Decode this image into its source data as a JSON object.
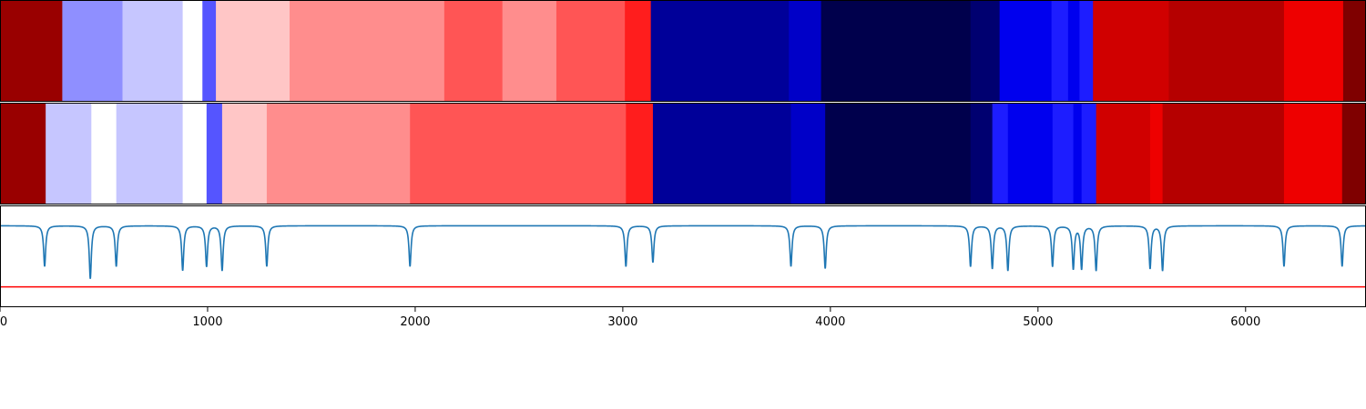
{
  "chart_data": {
    "type": "heatmap",
    "title": "",
    "xlabel": "",
    "ylabel": "",
    "xlim": [
      0,
      6580
    ],
    "xticks": [
      0,
      1000,
      2000,
      3000,
      4000,
      5000,
      6000
    ],
    "xtick_labels": [
      "0",
      "1000",
      "2000",
      "3000",
      "4000",
      "5000",
      "6000"
    ],
    "grid": false,
    "colormap": "seismic",
    "tracks": [
      {
        "segments": [
          {
            "start": 0,
            "end": 300,
            "color": "#990000"
          },
          {
            "start": 300,
            "end": 590,
            "color": "#8f8fff"
          },
          {
            "start": 590,
            "end": 880,
            "color": "#c6c6ff"
          },
          {
            "start": 880,
            "end": 975,
            "color": "#ffffff"
          },
          {
            "start": 975,
            "end": 1040,
            "color": "#5555ff"
          },
          {
            "start": 1040,
            "end": 1395,
            "color": "#ffc6c6"
          },
          {
            "start": 1395,
            "end": 2140,
            "color": "#ff8d8d"
          },
          {
            "start": 2140,
            "end": 2420,
            "color": "#ff5555"
          },
          {
            "start": 2420,
            "end": 2680,
            "color": "#ff8d8d"
          },
          {
            "start": 2680,
            "end": 3010,
            "color": "#ff5555"
          },
          {
            "start": 3010,
            "end": 3135,
            "color": "#ff1d1d"
          },
          {
            "start": 3135,
            "end": 3800,
            "color": "#000099"
          },
          {
            "start": 3800,
            "end": 3955,
            "color": "#0000c8"
          },
          {
            "start": 3955,
            "end": 4675,
            "color": "#00004c"
          },
          {
            "start": 4675,
            "end": 4815,
            "color": "#000070"
          },
          {
            "start": 4815,
            "end": 5065,
            "color": "#0000ee"
          },
          {
            "start": 5065,
            "end": 5145,
            "color": "#1d1dff"
          },
          {
            "start": 5145,
            "end": 5200,
            "color": "#0000ee"
          },
          {
            "start": 5200,
            "end": 5265,
            "color": "#1d1dff"
          },
          {
            "start": 5265,
            "end": 5630,
            "color": "#d00000"
          },
          {
            "start": 5630,
            "end": 6185,
            "color": "#b50000"
          },
          {
            "start": 6185,
            "end": 6470,
            "color": "#ee0000"
          },
          {
            "start": 6470,
            "end": 6580,
            "color": "#7f0000"
          }
        ]
      },
      {
        "segments": [
          {
            "start": 0,
            "end": 220,
            "color": "#990000"
          },
          {
            "start": 220,
            "end": 440,
            "color": "#c6c6ff"
          },
          {
            "start": 440,
            "end": 560,
            "color": "#ffffff"
          },
          {
            "start": 560,
            "end": 880,
            "color": "#c6c6ff"
          },
          {
            "start": 880,
            "end": 995,
            "color": "#ffffff"
          },
          {
            "start": 995,
            "end": 1070,
            "color": "#5555ff"
          },
          {
            "start": 1070,
            "end": 1285,
            "color": "#ffc6c6"
          },
          {
            "start": 1285,
            "end": 1975,
            "color": "#ff8d8d"
          },
          {
            "start": 1975,
            "end": 3015,
            "color": "#ff5555"
          },
          {
            "start": 3015,
            "end": 3145,
            "color": "#ff1d1d"
          },
          {
            "start": 3145,
            "end": 3810,
            "color": "#000099"
          },
          {
            "start": 3810,
            "end": 3975,
            "color": "#0000c8"
          },
          {
            "start": 3975,
            "end": 4675,
            "color": "#00004c"
          },
          {
            "start": 4675,
            "end": 4780,
            "color": "#000070"
          },
          {
            "start": 4780,
            "end": 4855,
            "color": "#1d1dff"
          },
          {
            "start": 4855,
            "end": 5070,
            "color": "#0000ee"
          },
          {
            "start": 5070,
            "end": 5170,
            "color": "#1d1dff"
          },
          {
            "start": 5170,
            "end": 5210,
            "color": "#0000ee"
          },
          {
            "start": 5210,
            "end": 5280,
            "color": "#1d1dff"
          },
          {
            "start": 5280,
            "end": 5540,
            "color": "#d00000"
          },
          {
            "start": 5540,
            "end": 5600,
            "color": "#ee0000"
          },
          {
            "start": 5600,
            "end": 6185,
            "color": "#b50000"
          },
          {
            "start": 6185,
            "end": 6465,
            "color": "#ee0000"
          },
          {
            "start": 6465,
            "end": 6580,
            "color": "#7f0000"
          }
        ]
      }
    ],
    "signal": {
      "color": "#1f77b4",
      "baseline": 1.0,
      "ylim": [
        -1.0,
        1.5
      ],
      "dips": [
        {
          "x": 215,
          "depth": 0.0,
          "width": 6
        },
        {
          "x": 435,
          "depth": -0.3,
          "width": 6
        },
        {
          "x": 560,
          "depth": 0.0,
          "width": 6
        },
        {
          "x": 880,
          "depth": -0.1,
          "width": 6
        },
        {
          "x": 995,
          "depth": 0.0,
          "width": 6
        },
        {
          "x": 1070,
          "depth": -0.1,
          "width": 6
        },
        {
          "x": 1285,
          "depth": 0.0,
          "width": 6
        },
        {
          "x": 1975,
          "depth": 0.0,
          "width": 6
        },
        {
          "x": 3015,
          "depth": 0.0,
          "width": 6
        },
        {
          "x": 3145,
          "depth": 0.1,
          "width": 6
        },
        {
          "x": 3810,
          "depth": 0.0,
          "width": 6
        },
        {
          "x": 3975,
          "depth": -0.05,
          "width": 6
        },
        {
          "x": 4675,
          "depth": 0.0,
          "width": 6
        },
        {
          "x": 4780,
          "depth": -0.05,
          "width": 6
        },
        {
          "x": 4855,
          "depth": -0.1,
          "width": 6
        },
        {
          "x": 5070,
          "depth": 0.0,
          "width": 6
        },
        {
          "x": 5170,
          "depth": -0.05,
          "width": 6
        },
        {
          "x": 5210,
          "depth": -0.05,
          "width": 6
        },
        {
          "x": 5280,
          "depth": -0.1,
          "width": 6
        },
        {
          "x": 5540,
          "depth": -0.05,
          "width": 6
        },
        {
          "x": 5600,
          "depth": -0.1,
          "width": 6
        },
        {
          "x": 6185,
          "depth": 0.0,
          "width": 6
        },
        {
          "x": 6465,
          "depth": 0.0,
          "width": 6
        }
      ]
    },
    "threshold": {
      "value": -0.5,
      "color": "#ff0000"
    }
  }
}
